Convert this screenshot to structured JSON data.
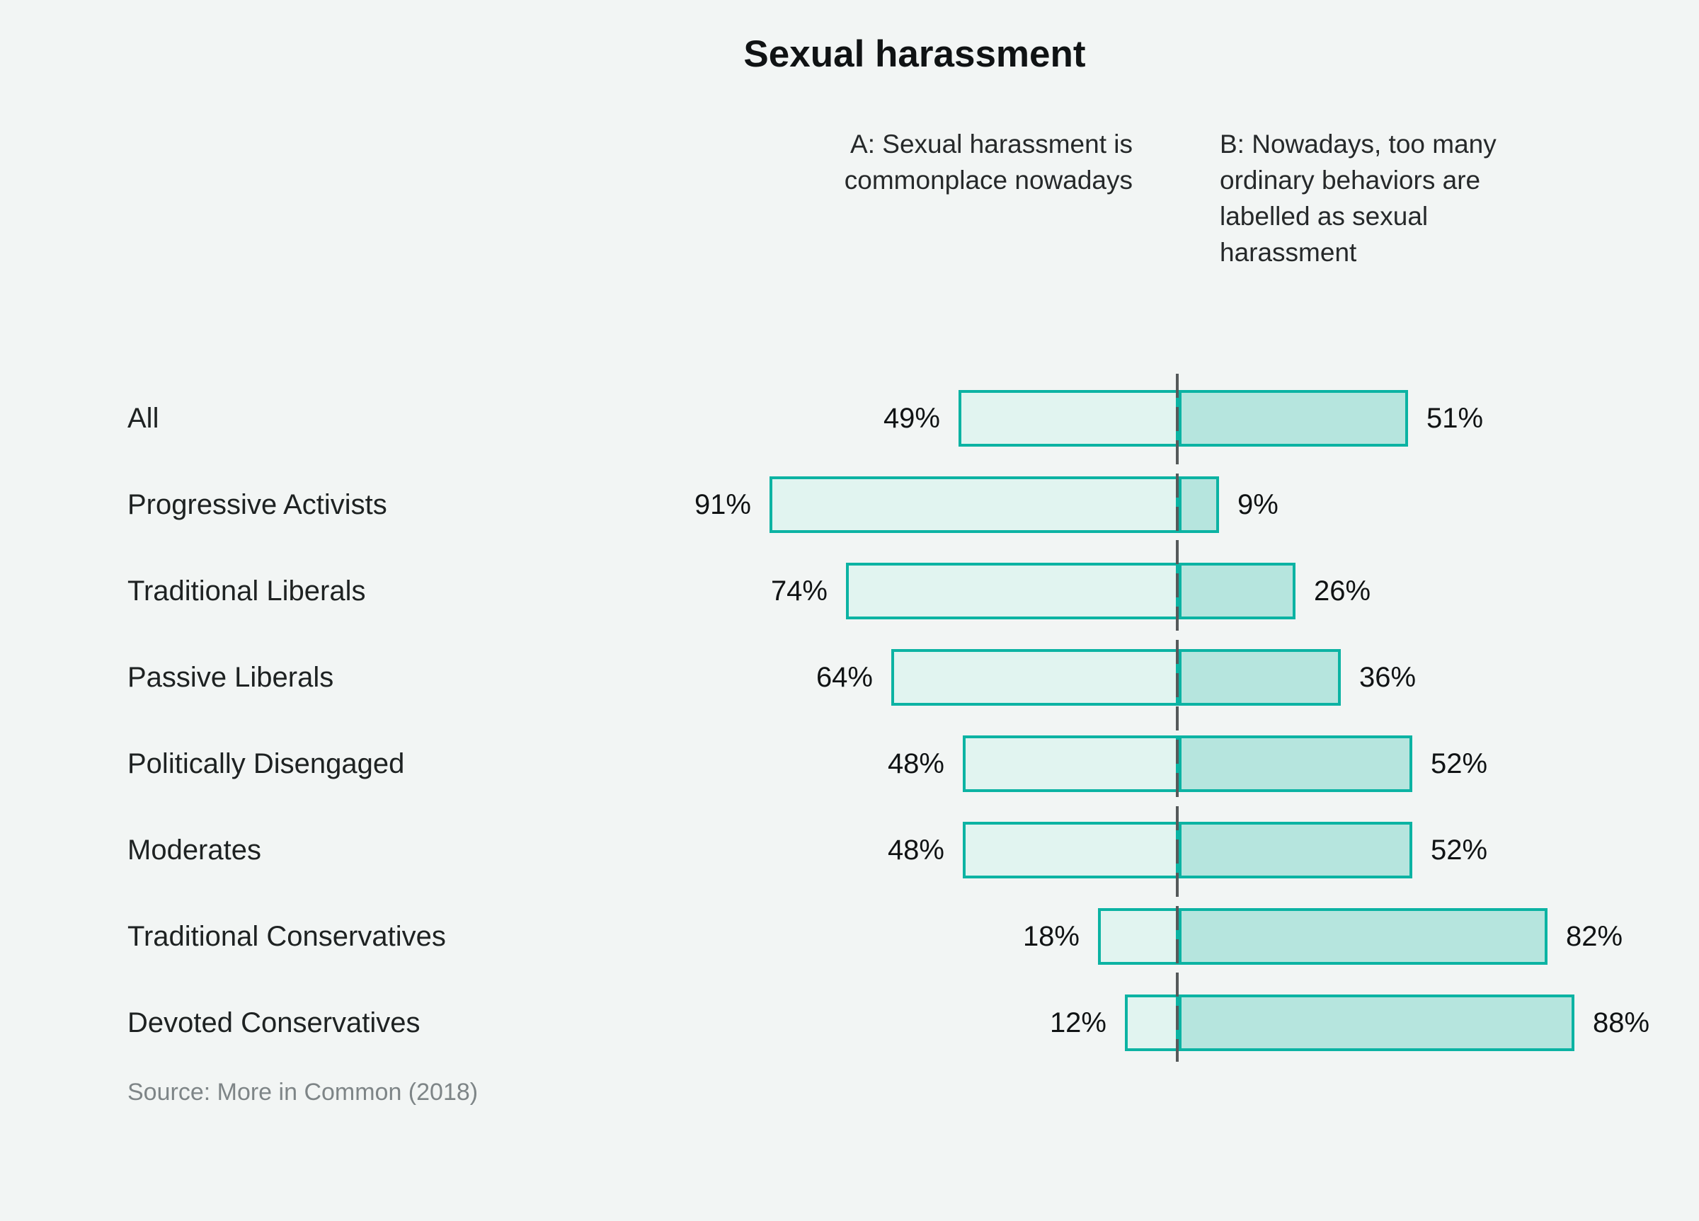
{
  "title": "Sexual harassment",
  "chart_data": {
    "type": "bar",
    "subtype": "diverging-horizontal-stacked",
    "title": "Sexual harassment",
    "statement_a": "A: Sexual harassment is\ncommonplace nowadays",
    "statement_b": "B: Nowadays, too many\nordinary behaviors are\nlabelled as sexual\nharassment",
    "categories": [
      "All",
      "Progressive Activists",
      "Traditional Liberals",
      "Passive Liberals",
      "Politically Disengaged",
      "Moderates",
      "Traditional Conservatives",
      "Devoted Conservatives"
    ],
    "series": [
      {
        "name": "A: Sexual harassment is commonplace nowadays",
        "values": [
          49,
          91,
          74,
          64,
          48,
          48,
          18,
          12
        ]
      },
      {
        "name": "B: Nowadays, too many ordinary behaviors are labelled as sexual harassment",
        "values": [
          51,
          9,
          26,
          36,
          52,
          52,
          82,
          88
        ]
      }
    ],
    "unit": "%",
    "axis_center_value": 0,
    "grid": false,
    "legend_position": "top-as-column-headers",
    "colors": {
      "background": "#f2f5f4",
      "bar_a_fill": "#e1f4f0",
      "bar_b_fill": "#b6e5de",
      "bar_border": "#0cb3a3",
      "divider": "#55595a",
      "text": "#1e2222",
      "source_text": "#7e8587"
    },
    "source": "Source: More in Common (2018)"
  },
  "rows": [
    {
      "label": "All",
      "a": 49,
      "b": 51,
      "a_label": "49%",
      "b_label": "51%"
    },
    {
      "label": "Progressive Activists",
      "a": 91,
      "b": 9,
      "a_label": "91%",
      "b_label": "9%"
    },
    {
      "label": "Traditional Liberals",
      "a": 74,
      "b": 26,
      "a_label": "74%",
      "b_label": "26%"
    },
    {
      "label": "Passive Liberals",
      "a": 64,
      "b": 36,
      "a_label": "64%",
      "b_label": "36%"
    },
    {
      "label": "Politically Disengaged",
      "a": 48,
      "b": 52,
      "a_label": "48%",
      "b_label": "52%"
    },
    {
      "label": "Moderates",
      "a": 48,
      "b": 52,
      "a_label": "48%",
      "b_label": "52%"
    },
    {
      "label": "Traditional Conservatives",
      "a": 18,
      "b": 82,
      "a_label": "18%",
      "b_label": "82%"
    },
    {
      "label": "Devoted Conservatives",
      "a": 12,
      "b": 88,
      "a_label": "12%",
      "b_label": "88%"
    }
  ]
}
